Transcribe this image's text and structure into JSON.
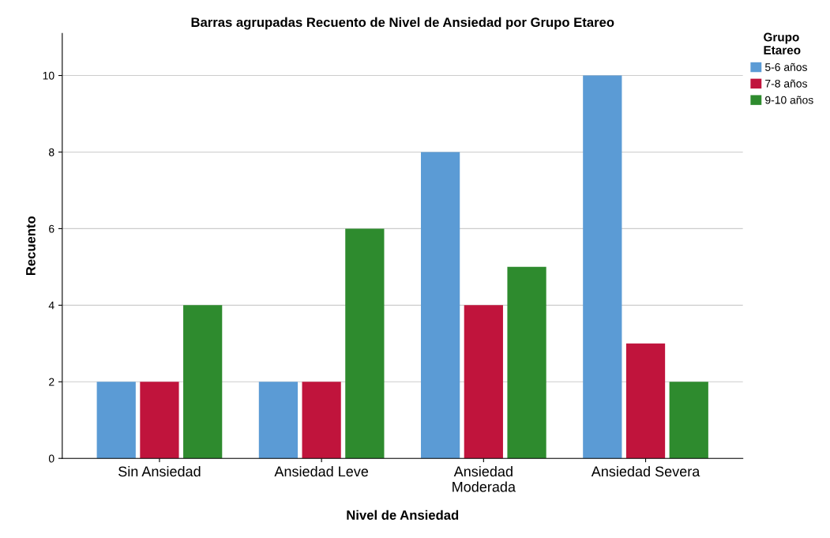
{
  "chart_data": {
    "type": "bar",
    "title": "Barras agrupadas Recuento de Nivel de Ansiedad por Grupo Etareo",
    "xlabel": "Nivel de Ansiedad",
    "ylabel": "Recuento",
    "legend_title": "Grupo\nEtareo",
    "categories": [
      "Sin Ansiedad",
      "Ansiedad Leve",
      "Ansiedad\nModerada",
      "Ansiedad Severa"
    ],
    "series": [
      {
        "name": "5-6 años",
        "color": "#5b9bd5",
        "values": [
          2,
          2,
          8,
          10
        ]
      },
      {
        "name": "7-8 años",
        "color": "#c0143c",
        "values": [
          2,
          2,
          4,
          3
        ]
      },
      {
        "name": "9-10 años",
        "color": "#2e8b2e",
        "values": [
          4,
          6,
          5,
          2
        ]
      }
    ],
    "ylim": [
      0,
      11.1
    ],
    "yticks": [
      0,
      2,
      4,
      6,
      8,
      10
    ],
    "grid": "y",
    "legend": "top right"
  }
}
